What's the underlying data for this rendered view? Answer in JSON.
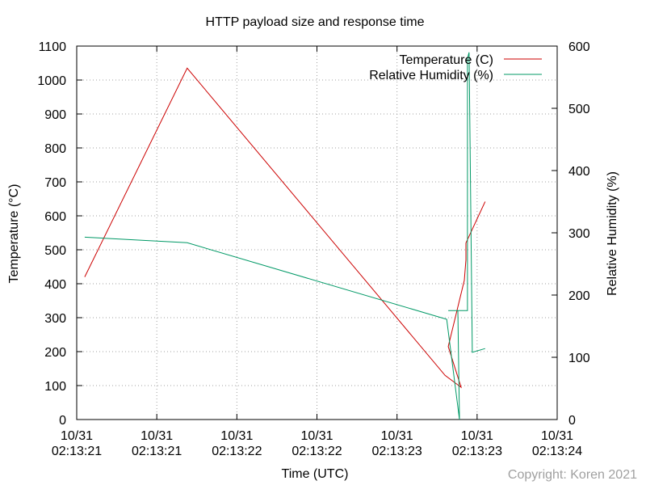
{
  "chart_data": {
    "type": "line",
    "title": "HTTP payload size and response time",
    "xlabel": "Time (UTC)",
    "ylabel": "Temperature (°C)",
    "y2label": "Relative Humidity (%)",
    "copyright": "Copyright: Koren 2021",
    "grid": true,
    "legend_position": "top-right",
    "x_range": [
      0,
      3
    ],
    "x_ticks": [
      {
        "x": 0.0,
        "date": "10/31",
        "time": "02:13:21"
      },
      {
        "x": 0.5,
        "date": "10/31",
        "time": "02:13:21"
      },
      {
        "x": 1.0,
        "date": "10/31",
        "time": "02:13:22"
      },
      {
        "x": 1.5,
        "date": "10/31",
        "time": "02:13:22"
      },
      {
        "x": 2.0,
        "date": "10/31",
        "time": "02:13:23"
      },
      {
        "x": 2.5,
        "date": "10/31",
        "time": "02:13:23"
      },
      {
        "x": 3.0,
        "date": "10/31",
        "time": "02:13:24"
      }
    ],
    "y_range": [
      0,
      1100
    ],
    "y_ticks": [
      "0",
      "100",
      "200",
      "300",
      "400",
      "500",
      "600",
      "700",
      "800",
      "900",
      "1000",
      "1100"
    ],
    "y2_range": [
      0,
      600
    ],
    "y2_ticks": [
      "0",
      "100",
      "200",
      "300",
      "400",
      "500",
      "600"
    ],
    "series": [
      {
        "name": "Temperature (C)",
        "axis": "y",
        "color": "#cc0000",
        "points": [
          [
            0.05,
            420
          ],
          [
            0.69,
            1035
          ],
          [
            2.3,
            130
          ],
          [
            2.4,
            95
          ],
          [
            2.32,
            215
          ],
          [
            2.42,
            410
          ],
          [
            2.43,
            470
          ],
          [
            2.43,
            520
          ],
          [
            2.55,
            642
          ]
        ]
      },
      {
        "name": "Relative Humidity (%)",
        "axis": "y2",
        "color": "#009966",
        "points": [
          [
            0.05,
            293
          ],
          [
            0.69,
            284
          ],
          [
            2.31,
            161
          ],
          [
            2.39,
            0
          ],
          [
            2.38,
            175
          ],
          [
            2.32,
            175
          ],
          [
            2.44,
            175
          ],
          [
            2.44,
            580
          ],
          [
            2.45,
            590
          ],
          [
            2.47,
            108
          ],
          [
            2.55,
            114
          ]
        ]
      }
    ]
  }
}
